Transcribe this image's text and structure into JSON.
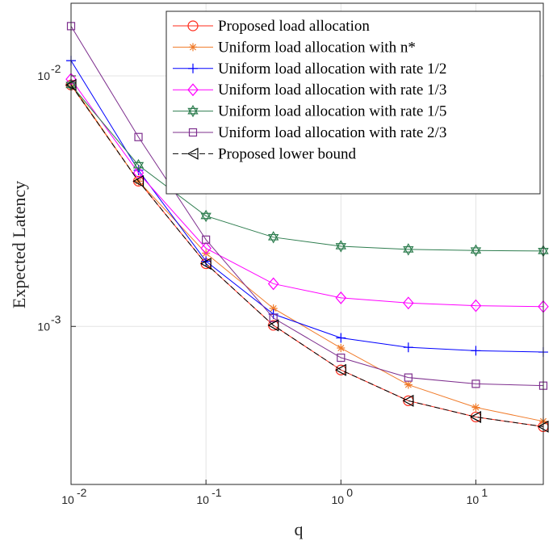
{
  "chart_data": {
    "type": "line",
    "title": "",
    "xlabel": "q",
    "ylabel": "Expected Latency",
    "xscale": "log",
    "yscale": "log",
    "xlim": [
      0.01,
      31.62
    ],
    "ylim": [
      0.000234,
      0.0195
    ],
    "grid": true,
    "legend_position": "top-right",
    "x_ticks": [
      {
        "value": 0.01,
        "base": "10",
        "exp": "-2"
      },
      {
        "value": 0.1,
        "base": "10",
        "exp": "-1"
      },
      {
        "value": 1,
        "base": "10",
        "exp": "0"
      },
      {
        "value": 10,
        "base": "10",
        "exp": "1"
      }
    ],
    "y_ticks": [
      {
        "value": 0.01,
        "base": "10",
        "exp": "-2"
      },
      {
        "value": 0.001,
        "base": "10",
        "exp": "-3"
      }
    ],
    "x": [
      0.01,
      0.0316,
      0.1,
      0.316,
      1,
      3.16,
      10,
      31.6
    ],
    "series": [
      {
        "name": "Proposed load allocation",
        "color": "#ff2a1a",
        "marker": "circle",
        "dash": "solid",
        "values": [
          0.0092,
          0.0038,
          0.00178,
          0.00101,
          0.00067,
          0.000505,
          0.000435,
          0.000398
        ]
      },
      {
        "name": "Uniform load allocation with n*",
        "color": "#f07b2a",
        "marker": "asterisk",
        "dash": "solid",
        "values": [
          0.0093,
          0.0038,
          0.00196,
          0.00118,
          0.00082,
          0.000585,
          0.000475,
          0.000418
        ]
      },
      {
        "name": "Uniform load allocation with rate 1/2",
        "color": "#0000ff",
        "marker": "plus",
        "dash": "solid",
        "values": [
          0.0115,
          0.0042,
          0.00182,
          0.00112,
          0.0009,
          0.000825,
          0.0008,
          0.00079
        ]
      },
      {
        "name": "Uniform load allocation with rate 1/3",
        "color": "#ff00ff",
        "marker": "diamond",
        "dash": "solid",
        "values": [
          0.0097,
          0.0041,
          0.00205,
          0.00148,
          0.0013,
          0.00124,
          0.00121,
          0.0012
        ]
      },
      {
        "name": "Uniform load allocation with rate 1/5",
        "color": "#2e7d4f",
        "marker": "hexagram",
        "dash": "solid",
        "values": [
          0.0092,
          0.0044,
          0.00276,
          0.00227,
          0.00209,
          0.00203,
          0.00201,
          0.002
        ]
      },
      {
        "name": "Uniform load allocation with rate 2/3",
        "color": "#7e2f8e",
        "marker": "square",
        "dash": "solid",
        "values": [
          0.0158,
          0.0057,
          0.00222,
          0.00108,
          0.00075,
          0.000625,
          0.00059,
          0.00058
        ]
      },
      {
        "name": "Proposed lower bound",
        "color": "#000000",
        "marker": "triangle-left",
        "dash": "dashed",
        "values": [
          0.0092,
          0.0038,
          0.00178,
          0.00101,
          0.00067,
          0.000505,
          0.000435,
          0.000398
        ]
      }
    ]
  }
}
